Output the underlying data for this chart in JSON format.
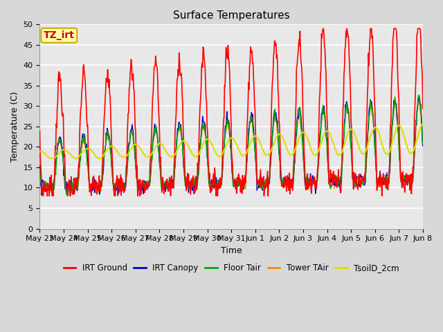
{
  "title": "Surface Temperatures",
  "xlabel": "Time",
  "ylabel": "Temperature (C)",
  "ylim": [
    0,
    50
  ],
  "yticks": [
    0,
    5,
    10,
    15,
    20,
    25,
    30,
    35,
    40,
    45,
    50
  ],
  "series": {
    "IRT Ground": {
      "color": "#ff0000",
      "lw": 1.2
    },
    "IRT Canopy": {
      "color": "#0000cc",
      "lw": 1.0
    },
    "Floor Tair": {
      "color": "#00aa00",
      "lw": 1.0
    },
    "Tower TAir": {
      "color": "#ff8800",
      "lw": 1.0
    },
    "TsoilD_2cm": {
      "color": "#dddd00",
      "lw": 1.5
    }
  },
  "annotation_text": "TZ_irt",
  "annotation_color": "#cc0000",
  "annotation_bg": "#ffffaa",
  "annotation_edge": "#ccaa00",
  "plot_bg": "#e8e8e8",
  "grid_color": "#ffffff",
  "title_fontsize": 11,
  "axis_fontsize": 9,
  "tick_fontsize": 8,
  "legend_fontsize": 8.5,
  "figsize": [
    6.4,
    4.8
  ],
  "dpi": 100
}
